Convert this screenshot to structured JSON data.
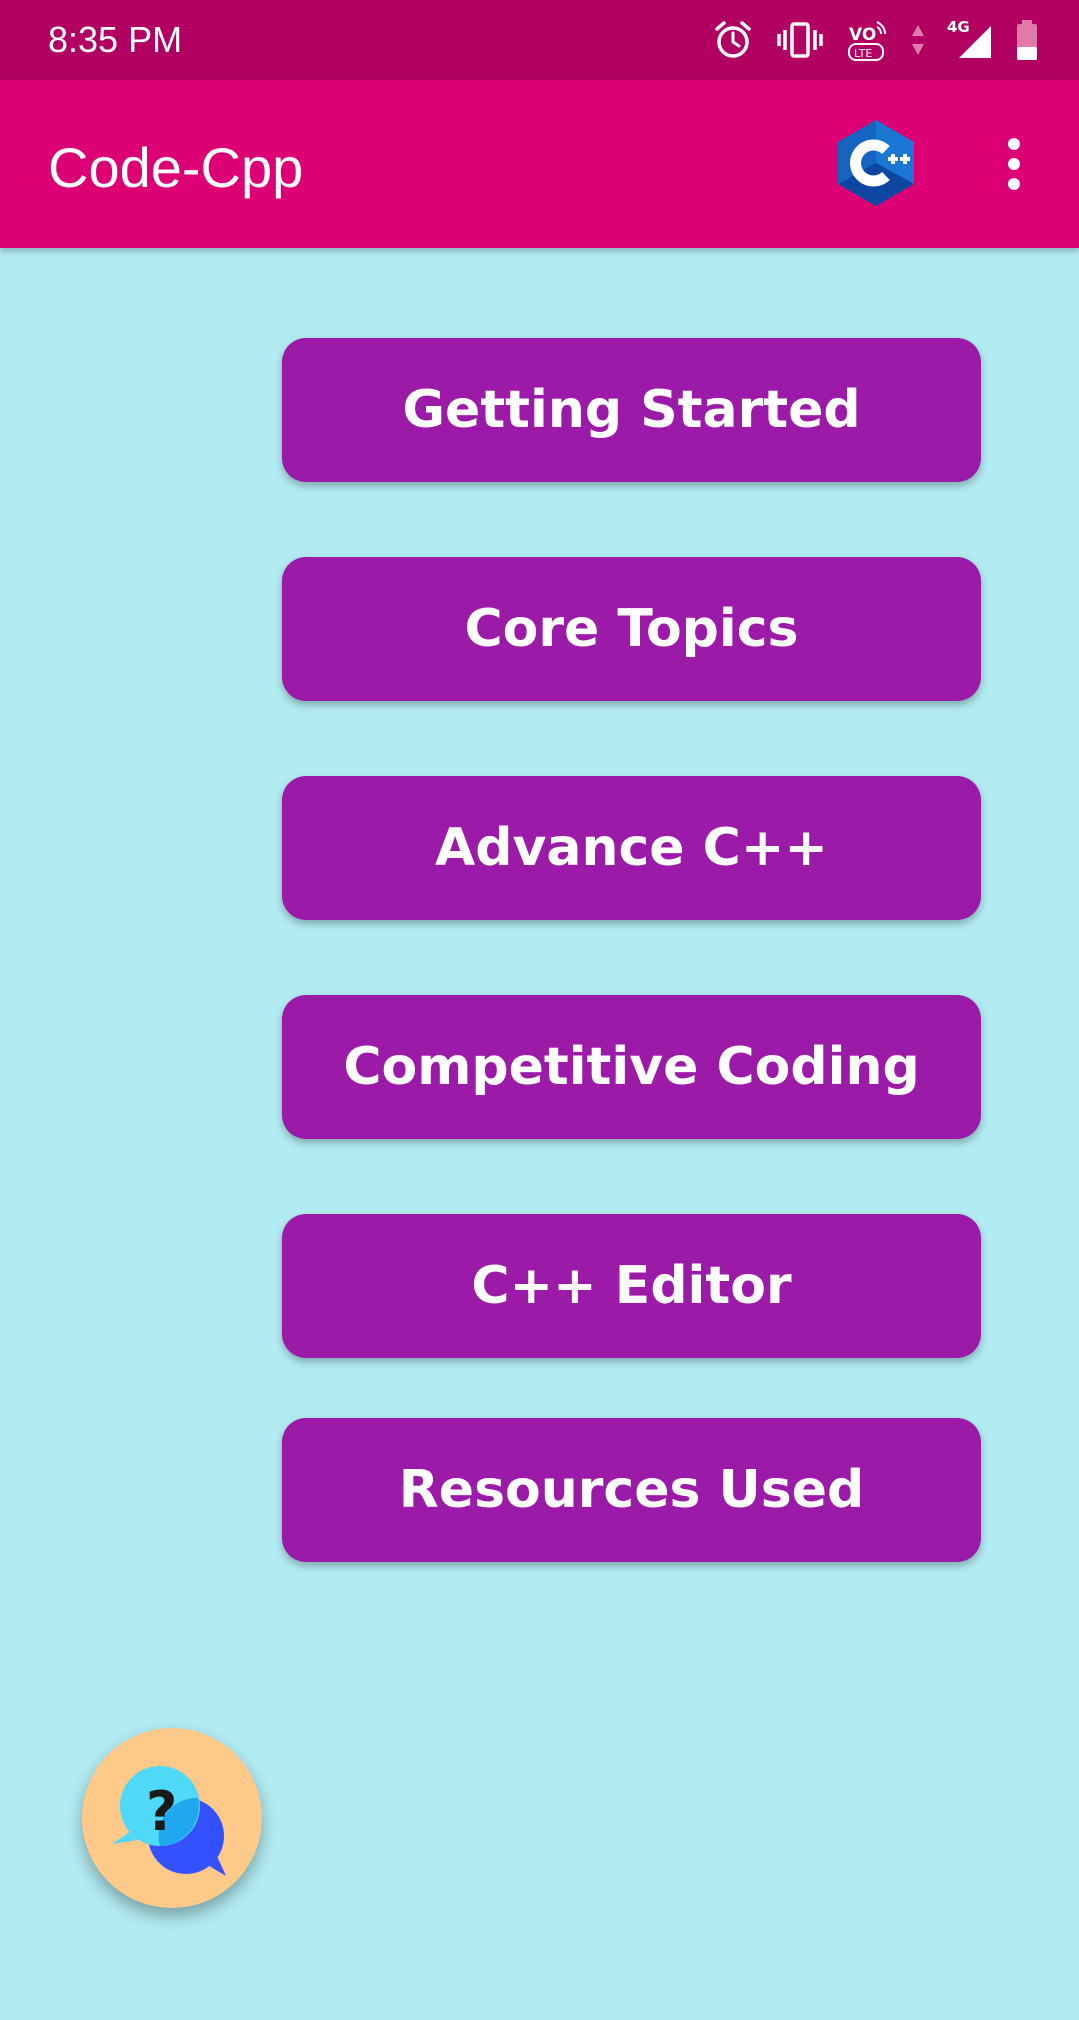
{
  "status_bar": {
    "time": "8:35 PM",
    "icons": [
      "alarm-icon",
      "vibrate-icon",
      "volte-icon",
      "data-arrows-icon",
      "signal-4g-icon",
      "battery-icon"
    ],
    "network_label": "4G",
    "volte_label": "VO LTE"
  },
  "app_bar": {
    "title": "Code-Cpp",
    "logo": "cpp-logo-icon",
    "menu": "more-vert-icon"
  },
  "menu": {
    "items": [
      {
        "label": "Getting Started"
      },
      {
        "label": "Core Topics"
      },
      {
        "label": "Advance C++"
      },
      {
        "label": "Competitive Coding"
      },
      {
        "label": "C++ Editor"
      },
      {
        "label": "Resources Used"
      }
    ]
  },
  "fab": {
    "icon": "help-chat-icon"
  },
  "colors": {
    "status_bar": "#b20062",
    "app_bar": "#dd0074",
    "background": "#b2ebf2",
    "button": "#9c1aa8",
    "fab": "#ffc98a"
  }
}
